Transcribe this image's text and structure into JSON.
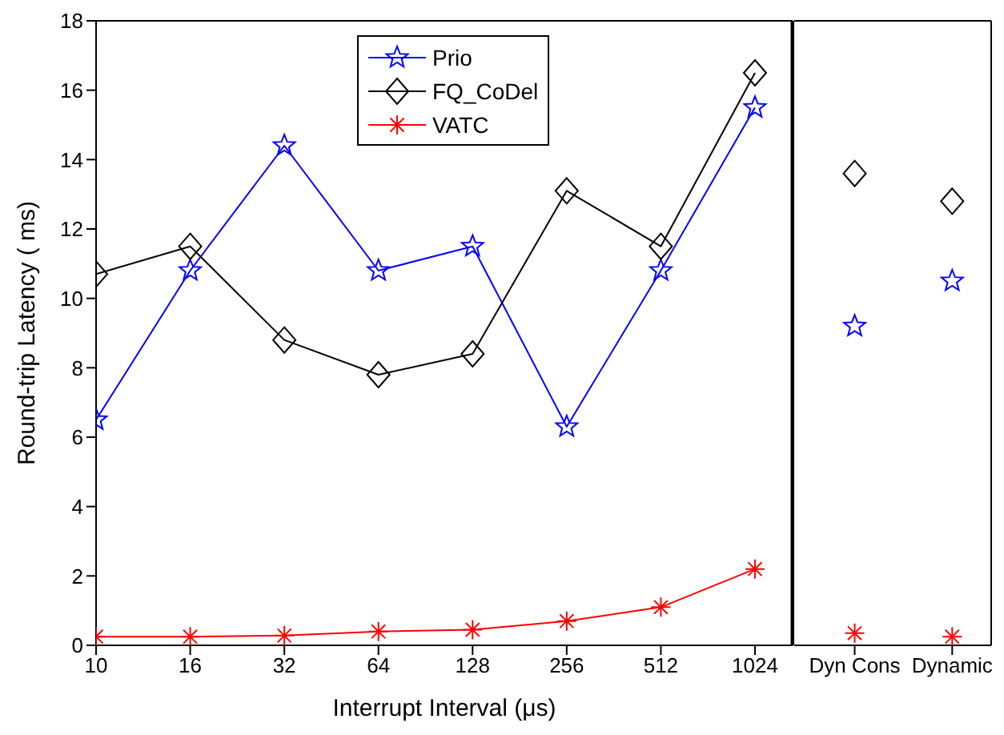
{
  "chart_data": [
    {
      "type": "line",
      "xlabel": "Interrupt Interval (μs)",
      "ylabel": "Round-trip Latency ( ms)",
      "categories": [
        "10",
        "16",
        "32",
        "64",
        "128",
        "256",
        "512",
        "1024"
      ],
      "ylim": [
        0,
        18
      ],
      "yticks": [
        0,
        2,
        4,
        6,
        8,
        10,
        12,
        14,
        16,
        18
      ],
      "legend": "top",
      "line_style": "solid",
      "series": [
        {
          "name": "Prio",
          "marker": "star",
          "color": "#0000ff",
          "values": [
            6.5,
            10.8,
            14.4,
            10.8,
            11.5,
            6.3,
            10.8,
            15.5
          ]
        },
        {
          "name": "FQ_CoDel",
          "marker": "diamond",
          "color": "#000000",
          "values": [
            10.7,
            11.5,
            8.8,
            7.8,
            8.4,
            13.1,
            11.5,
            16.5
          ]
        },
        {
          "name": "VATC",
          "marker": "cross",
          "color": "#ff0000",
          "values": [
            0.25,
            0.25,
            0.28,
            0.4,
            0.45,
            0.7,
            1.1,
            2.2
          ]
        }
      ]
    },
    {
      "type": "scatter",
      "categories": [
        "Dyn Cons",
        "Dynamic"
      ],
      "ylim": [
        0,
        18
      ],
      "tick_labels": "x",
      "series": [
        {
          "marker": "star",
          "color": "#0000ff",
          "values": [
            9.2,
            10.5
          ]
        },
        {
          "marker": "diamond",
          "color": "#000000",
          "values": [
            13.6,
            12.8
          ]
        },
        {
          "marker": "cross",
          "color": "#ff0000",
          "values": [
            0.35,
            0.25
          ]
        }
      ]
    }
  ]
}
